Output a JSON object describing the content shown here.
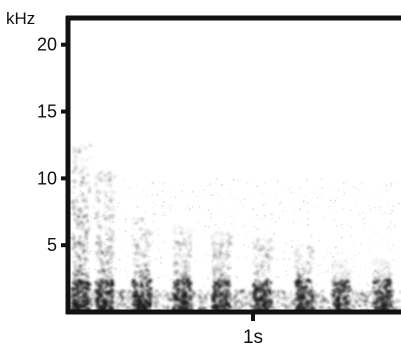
{
  "chart_data": {
    "type": "heatmap",
    "title": "",
    "xlabel": "",
    "ylabel": "",
    "yunit": "kHz",
    "yticks": [
      5,
      10,
      15,
      20
    ],
    "ytick_labels": [
      "5",
      "10",
      "15",
      "20"
    ],
    "ylim": [
      0,
      22
    ],
    "xticks": [
      1
    ],
    "xtick_labels": [
      "1s"
    ],
    "xlim": [
      0,
      1.8
    ],
    "grid": false,
    "colormap": "grayscale",
    "ink_color": "#1a1a1a",
    "events": [
      {
        "t": 0.07,
        "top": 12.5,
        "strength": 1.0
      },
      {
        "t": 0.2,
        "top": 10.5,
        "strength": 0.95
      },
      {
        "t": 0.4,
        "top": 7.0,
        "strength": 0.85
      },
      {
        "t": 0.62,
        "top": 6.5,
        "strength": 0.8
      },
      {
        "t": 0.83,
        "top": 6.0,
        "strength": 0.75
      },
      {
        "t": 1.05,
        "top": 5.5,
        "strength": 0.75
      },
      {
        "t": 1.28,
        "top": 5.0,
        "strength": 0.7
      },
      {
        "t": 1.48,
        "top": 4.0,
        "strength": 0.55
      },
      {
        "t": 1.7,
        "top": 4.0,
        "strength": 0.55
      }
    ]
  }
}
